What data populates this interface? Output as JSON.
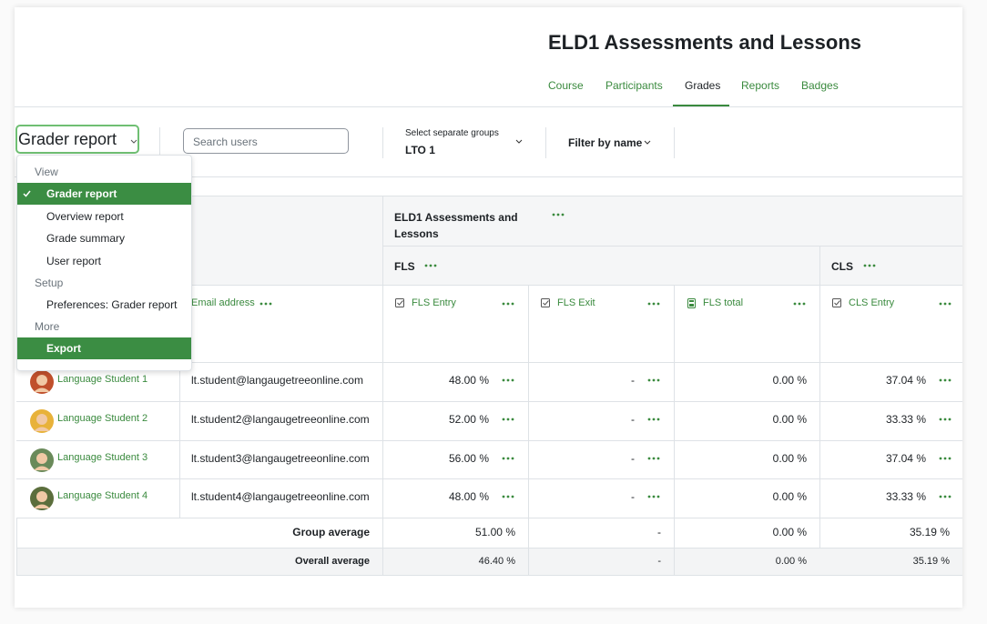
{
  "header": {
    "title": "ELD1 Assessments and Lessons",
    "nav": [
      {
        "label": "Course"
      },
      {
        "label": "Participants"
      },
      {
        "label": "Grades",
        "active": true
      },
      {
        "label": "Reports"
      },
      {
        "label": "Badges"
      }
    ]
  },
  "toolbar": {
    "report_selector": "Grader report",
    "search_placeholder": "Search users",
    "group_label": "Select separate groups",
    "group_value": "LTO 1",
    "filter": "Filter by name"
  },
  "menu": {
    "sections": [
      {
        "heading": "View",
        "items": [
          {
            "label": "Grader report",
            "selected": true
          },
          {
            "label": "Overview report"
          },
          {
            "label": "Grade summary"
          },
          {
            "label": "User report"
          }
        ]
      },
      {
        "heading": "Setup",
        "items": [
          {
            "label": "Preferences: Grader report"
          }
        ]
      },
      {
        "heading": "More",
        "items": [
          {
            "label": "Export",
            "highlighted": true
          }
        ]
      }
    ]
  },
  "table": {
    "category": "ELD1 Assessments and Lessons",
    "subcategories": [
      "FLS",
      "CLS"
    ],
    "email_header": "Email address",
    "columns": [
      {
        "label": "FLS Entry",
        "icon": "check"
      },
      {
        "label": "FLS Exit",
        "icon": "check"
      },
      {
        "label": "FLS total",
        "icon": "calculator"
      },
      {
        "label": "CLS Entry",
        "icon": "check"
      }
    ],
    "rows": [
      {
        "name": "Language Student 1",
        "email": "lt.student@langaugetreeonline.com",
        "grades": [
          "48.00 %",
          "-",
          "0.00 %",
          "37.04 %"
        ],
        "avatar_color": "#c0502c"
      },
      {
        "name": "Language Student 2",
        "email": "lt.student2@langaugetreeonline.com",
        "grades": [
          "52.00 %",
          "-",
          "0.00 %",
          "33.33 %"
        ],
        "avatar_color": "#e8b23a"
      },
      {
        "name": "Language Student 3",
        "email": "lt.student3@langaugetreeonline.com",
        "grades": [
          "56.00 %",
          "-",
          "0.00 %",
          "37.04 %"
        ],
        "avatar_color": "#6a8a5a"
      },
      {
        "name": "Language Student 4",
        "email": "lt.student4@langaugetreeonline.com",
        "grades": [
          "48.00 %",
          "-",
          "0.00 %",
          "33.33 %"
        ],
        "avatar_color": "#5b6e3c"
      }
    ],
    "averages": [
      {
        "label": "Group average",
        "values": [
          "51.00 %",
          "-",
          "0.00 %",
          "35.19 %"
        ]
      },
      {
        "label": "Overall average",
        "values": [
          "46.40 %",
          "-",
          "0.00 %",
          "35.19 %"
        ],
        "shaded": true
      }
    ]
  }
}
